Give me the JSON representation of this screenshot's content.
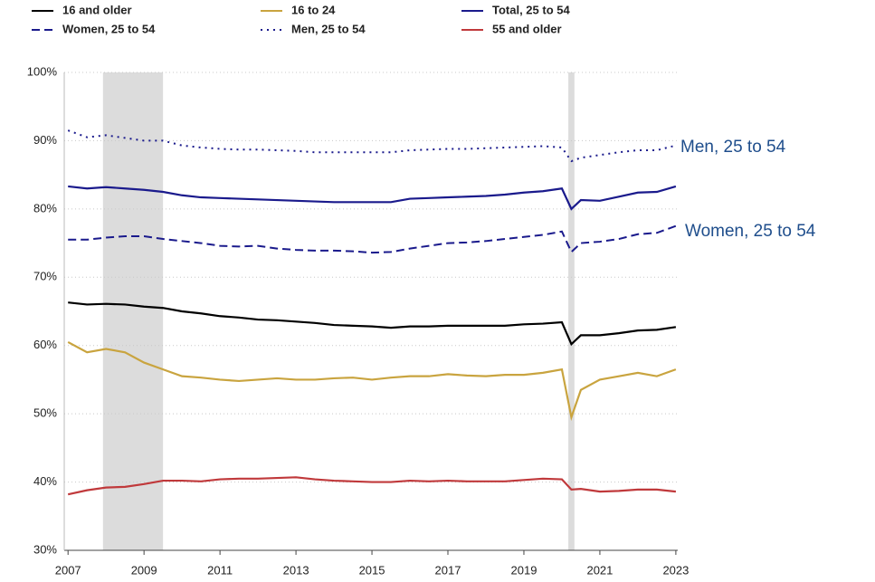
{
  "chart_data": {
    "type": "line",
    "x": [
      2007,
      2007.5,
      2008,
      2008.5,
      2009,
      2009.5,
      2010,
      2010.5,
      2011,
      2011.5,
      2012,
      2012.5,
      2013,
      2013.5,
      2014,
      2014.5,
      2015,
      2015.5,
      2016,
      2016.5,
      2017,
      2017.5,
      2018,
      2018.5,
      2019,
      2019.5,
      2020,
      2020.25,
      2020.5,
      2021,
      2021.5,
      2022,
      2022.5,
      2023
    ],
    "series": [
      {
        "name": "16 and older",
        "color": "#000000",
        "style": "solid",
        "values": [
          66.3,
          66.0,
          66.1,
          66.0,
          65.7,
          65.5,
          65.0,
          64.7,
          64.3,
          64.1,
          63.8,
          63.7,
          63.5,
          63.3,
          63.0,
          62.9,
          62.8,
          62.6,
          62.8,
          62.8,
          62.9,
          62.9,
          62.9,
          62.9,
          63.1,
          63.2,
          63.4,
          60.2,
          61.5,
          61.5,
          61.8,
          62.2,
          62.3,
          62.7
        ]
      },
      {
        "name": "16 to 24",
        "color": "#c9a43f",
        "style": "solid",
        "values": [
          60.5,
          59.0,
          59.5,
          59.0,
          57.5,
          56.5,
          55.5,
          55.3,
          55.0,
          54.8,
          55.0,
          55.2,
          55.0,
          55.0,
          55.2,
          55.3,
          55.0,
          55.3,
          55.5,
          55.5,
          55.8,
          55.6,
          55.5,
          55.7,
          55.7,
          56.0,
          56.5,
          49.5,
          53.5,
          55.0,
          55.5,
          56.0,
          55.5,
          56.5
        ]
      },
      {
        "name": "Total, 25 to 54",
        "color": "#1a1a8c",
        "style": "solid",
        "values": [
          83.3,
          83.0,
          83.2,
          83.0,
          82.8,
          82.5,
          82.0,
          81.7,
          81.6,
          81.5,
          81.4,
          81.3,
          81.2,
          81.1,
          81.0,
          81.0,
          81.0,
          81.0,
          81.5,
          81.6,
          81.7,
          81.8,
          81.9,
          82.1,
          82.4,
          82.6,
          83.0,
          80.0,
          81.3,
          81.2,
          81.8,
          82.4,
          82.5,
          83.3
        ]
      },
      {
        "name": "Women, 25 to 54",
        "color": "#1a1a8c",
        "style": "dashed",
        "values": [
          75.5,
          75.5,
          75.8,
          76.0,
          76.0,
          75.6,
          75.3,
          75.0,
          74.6,
          74.5,
          74.6,
          74.2,
          74.0,
          73.9,
          73.9,
          73.8,
          73.6,
          73.7,
          74.2,
          74.6,
          75.0,
          75.1,
          75.3,
          75.6,
          75.9,
          76.2,
          76.7,
          73.7,
          75.0,
          75.2,
          75.6,
          76.3,
          76.5,
          77.5
        ]
      },
      {
        "name": "Men, 25 to 54",
        "color": "#1a1a8c",
        "style": "dotted",
        "values": [
          91.5,
          90.5,
          90.8,
          90.4,
          90.0,
          90.0,
          89.3,
          89.0,
          88.8,
          88.7,
          88.7,
          88.6,
          88.5,
          88.3,
          88.3,
          88.3,
          88.3,
          88.3,
          88.6,
          88.7,
          88.8,
          88.8,
          88.9,
          89.0,
          89.1,
          89.2,
          89.0,
          87.0,
          87.5,
          87.9,
          88.3,
          88.6,
          88.6,
          89.3
        ]
      },
      {
        "name": "55 and older",
        "color": "#c0393b",
        "style": "solid",
        "values": [
          38.2,
          38.8,
          39.2,
          39.3,
          39.7,
          40.2,
          40.2,
          40.1,
          40.4,
          40.5,
          40.5,
          40.6,
          40.7,
          40.4,
          40.2,
          40.1,
          40.0,
          40.0,
          40.2,
          40.1,
          40.2,
          40.1,
          40.1,
          40.1,
          40.3,
          40.5,
          40.4,
          38.9,
          39.0,
          38.6,
          38.7,
          38.9,
          38.9,
          38.6
        ]
      }
    ],
    "recessions": [
      [
        2007.92,
        2009.5
      ],
      [
        2020.17,
        2020.33
      ]
    ],
    "xlim": [
      2006.9,
      2023.05
    ],
    "xticks": [
      2007,
      2009,
      2011,
      2013,
      2015,
      2017,
      2019,
      2021,
      2023
    ],
    "ylim": [
      30,
      100
    ],
    "yticks": [
      {
        "value": 30,
        "label": "30%"
      },
      {
        "value": 40,
        "label": "40%"
      },
      {
        "value": 50,
        "label": "50%"
      },
      {
        "value": 60,
        "label": "60%"
      },
      {
        "value": 70,
        "label": "70%"
      },
      {
        "value": 80,
        "label": "80%"
      },
      {
        "value": 90,
        "label": "90%"
      },
      {
        "value": 100,
        "label": "100%"
      }
    ],
    "grid": true,
    "annotations": [
      {
        "text": "Men, 25 to 54"
      },
      {
        "text": "Women, 25 to 54"
      }
    ]
  }
}
